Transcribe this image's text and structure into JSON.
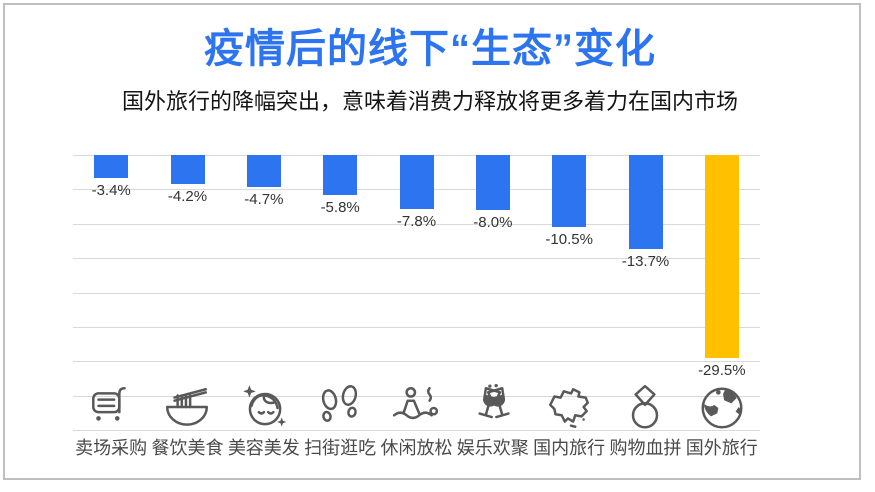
{
  "frame": {
    "border_color": "#BEBEBE"
  },
  "header": {
    "title": "疫情后的线下“生态”变化",
    "subtitle": "国外旅行的降幅突出，意味着消费力释放将更多着力在国内市场",
    "title_color": "#2D74F0"
  },
  "chart_data": {
    "type": "bar",
    "title": "疫情后的线下“生态”变化",
    "subtitle": "国外旅行的降幅突出，意味着消费力释放将更多着力在国内市场",
    "categories": [
      "卖场采购",
      "餐饮美食",
      "美容美发",
      "扫街逛吃",
      "休闲放松",
      "娱乐欢聚",
      "国内旅行",
      "购物血拼",
      "国外旅行"
    ],
    "values": [
      -3.4,
      -4.2,
      -4.7,
      -5.8,
      -7.8,
      -8.0,
      -10.5,
      -13.7,
      -29.5
    ],
    "value_labels": [
      "-3.4%",
      "-4.2%",
      "-4.7%",
      "-5.8%",
      "-7.8%",
      "-8.0%",
      "-10.5%",
      "-13.7%",
      "-29.5%"
    ],
    "series_color": "#2C74F0",
    "highlight_color": "#FFC000",
    "highlight_index": 8,
    "ylim": [
      -40,
      0
    ],
    "grid": true,
    "gridline_step": 5,
    "gridline_color": "#D9D9D9",
    "legend": "none",
    "icons": [
      "cart-icon",
      "noodle-bowl-icon",
      "beauty-face-icon",
      "footprints-icon",
      "spa-relax-icon",
      "wine-glasses-icon",
      "china-map-icon",
      "diamond-ring-icon",
      "globe-icon"
    ]
  }
}
